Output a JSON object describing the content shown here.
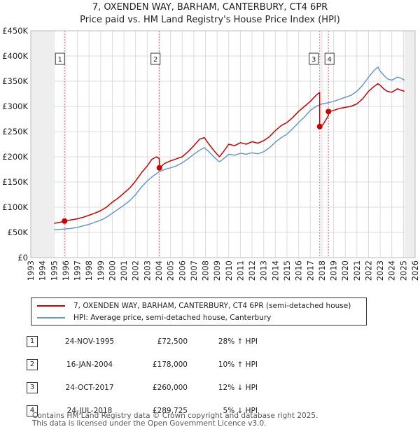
{
  "chart_data": {
    "type": "line",
    "title": "7, OXENDEN WAY, BARHAM, CANTERBURY, CT4 6PR",
    "subtitle": "Price paid vs. HM Land Registry's House Price Index (HPI)",
    "xlabel": "",
    "ylabel": "",
    "xlim": [
      1993,
      2026
    ],
    "ylim": [
      0,
      450000
    ],
    "y_ticks": [
      0,
      50000,
      100000,
      150000,
      200000,
      250000,
      300000,
      350000,
      400000,
      450000
    ],
    "y_tick_labels": [
      "£0",
      "£50K",
      "£100K",
      "£150K",
      "£200K",
      "£250K",
      "£300K",
      "£350K",
      "£400K",
      "£450K"
    ],
    "x_ticks": [
      1993,
      1994,
      1995,
      1996,
      1997,
      1998,
      1999,
      2000,
      2001,
      2002,
      2003,
      2004,
      2005,
      2006,
      2007,
      2008,
      2009,
      2010,
      2011,
      2012,
      2013,
      2014,
      2015,
      2016,
      2017,
      2018,
      2019,
      2020,
      2021,
      2022,
      2023,
      2024,
      2025,
      2026
    ],
    "x_tick_labels": [
      "1993",
      "1994",
      "1995",
      "1996",
      "1997",
      "1998",
      "1999",
      "2000",
      "2001",
      "2002",
      "2003",
      "2004",
      "2005",
      "2006",
      "2007",
      "2008",
      "2009",
      "2010",
      "2011",
      "2012",
      "2013",
      "2014",
      "2015",
      "2016",
      "2017",
      "2018",
      "2019",
      "2020",
      "2021",
      "2022",
      "2023",
      "2024",
      "2025",
      "2026"
    ],
    "data_range": [
      1995.0,
      2025.08
    ],
    "grid": true,
    "series": [
      {
        "name": "7, OXENDEN WAY, BARHAM, CANTERBURY, CT4 6PR (semi-detached house)",
        "color": "#cc0000",
        "x": [
          1995.0,
          1995.5,
          1995.9,
          1996.5,
          1997.0,
          1997.5,
          1998.0,
          1998.5,
          1999.0,
          1999.5,
          2000.0,
          2000.5,
          2001.0,
          2001.5,
          2002.0,
          2002.5,
          2003.0,
          2003.4,
          2003.8,
          2004.04,
          2004.04,
          2004.5,
          2005.0,
          2005.5,
          2006.0,
          2006.5,
          2007.0,
          2007.5,
          2007.9,
          2008.3,
          2008.8,
          2009.2,
          2009.6,
          2010.0,
          2010.5,
          2011.0,
          2011.5,
          2012.0,
          2012.5,
          2013.0,
          2013.5,
          2014.0,
          2014.5,
          2015.0,
          2015.5,
          2016.0,
          2016.5,
          2017.0,
          2017.5,
          2017.81,
          2017.81,
          2017.9,
          2018.1,
          2018.56,
          2018.56,
          2019.0,
          2019.5,
          2020.0,
          2020.5,
          2021.0,
          2021.5,
          2022.0,
          2022.5,
          2022.8,
          2023.0,
          2023.3,
          2023.6,
          2024.0,
          2024.5,
          2024.8,
          2025.08
        ],
        "values": [
          68000,
          70000,
          72500,
          75000,
          77000,
          80000,
          84000,
          88000,
          93000,
          100000,
          110000,
          118000,
          128000,
          138000,
          152000,
          168000,
          182000,
          195000,
          200000,
          196000,
          178000,
          187000,
          192000,
          196000,
          200000,
          210000,
          222000,
          235000,
          238000,
          225000,
          210000,
          200000,
          212000,
          225000,
          222000,
          228000,
          225000,
          230000,
          227000,
          232000,
          240000,
          252000,
          262000,
          268000,
          278000,
          290000,
          300000,
          310000,
          322000,
          328000,
          260000,
          262000,
          264000,
          282000,
          289725,
          292000,
          296000,
          298000,
          300000,
          305000,
          315000,
          330000,
          340000,
          345000,
          342000,
          335000,
          330000,
          328000,
          335000,
          332000,
          330000
        ]
      },
      {
        "name": "HPI: Average price, semi-detached house, Canterbury",
        "color": "#6699cc",
        "x": [
          1995.0,
          1995.5,
          1996.0,
          1996.5,
          1997.0,
          1997.5,
          1998.0,
          1998.5,
          1999.0,
          1999.5,
          2000.0,
          2000.5,
          2001.0,
          2001.5,
          2002.0,
          2002.5,
          2003.0,
          2003.5,
          2004.0,
          2004.5,
          2005.0,
          2005.5,
          2006.0,
          2006.5,
          2007.0,
          2007.5,
          2007.9,
          2008.3,
          2008.8,
          2009.2,
          2009.6,
          2010.0,
          2010.5,
          2011.0,
          2011.5,
          2012.0,
          2012.5,
          2013.0,
          2013.5,
          2014.0,
          2014.5,
          2015.0,
          2015.5,
          2016.0,
          2016.5,
          2017.0,
          2017.5,
          2018.0,
          2018.5,
          2019.0,
          2019.5,
          2020.0,
          2020.5,
          2021.0,
          2021.5,
          2022.0,
          2022.5,
          2022.8,
          2023.0,
          2023.3,
          2023.6,
          2024.0,
          2024.5,
          2024.8,
          2025.08
        ],
        "values": [
          55000,
          56000,
          57000,
          58000,
          60000,
          63000,
          66000,
          70000,
          74000,
          80000,
          88000,
          96000,
          104000,
          113000,
          125000,
          140000,
          152000,
          162000,
          170000,
          175000,
          178000,
          182000,
          188000,
          196000,
          205000,
          213000,
          218000,
          210000,
          198000,
          190000,
          197000,
          205000,
          203000,
          207000,
          205000,
          208000,
          206000,
          210000,
          218000,
          229000,
          238000,
          245000,
          256000,
          268000,
          279000,
          292000,
          300000,
          305000,
          307000,
          310000,
          314000,
          318000,
          322000,
          330000,
          342000,
          358000,
          372000,
          378000,
          370000,
          362000,
          355000,
          352000,
          358000,
          356000,
          352000
        ]
      }
    ],
    "annotations": [
      {
        "label": "1",
        "x": 1995.9,
        "price": 72500
      },
      {
        "label": "2",
        "x": 2004.04,
        "price": 178000
      },
      {
        "label": "3",
        "x": 2017.81,
        "price": 260000
      },
      {
        "label": "4",
        "x": 2018.56,
        "price": 289725
      }
    ]
  },
  "legend": {
    "property_label": "7, OXENDEN WAY, BARHAM, CANTERBURY, CT4 6PR (semi-detached house)",
    "hpi_label": "HPI: Average price, semi-detached house, Canterbury"
  },
  "transactions": [
    {
      "num": "1",
      "date": "24-NOV-1995",
      "price": "£72,500",
      "hpi": "28% ↑ HPI"
    },
    {
      "num": "2",
      "date": "16-JAN-2004",
      "price": "£178,000",
      "hpi": "10% ↑ HPI"
    },
    {
      "num": "3",
      "date": "24-OCT-2017",
      "price": "£260,000",
      "hpi": "12% ↓ HPI"
    },
    {
      "num": "4",
      "date": "24-JUL-2018",
      "price": "£289,725",
      "hpi": "5% ↓ HPI"
    }
  ],
  "footer": {
    "line1": "Contains HM Land Registry data © Crown copyright and database right 2025.",
    "line2": "This data is licensed under the Open Government Licence v3.0."
  }
}
